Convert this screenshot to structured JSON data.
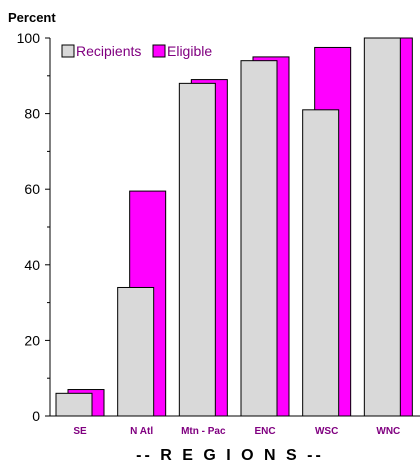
{
  "chart_data": {
    "type": "bar",
    "ylabel": "Percent",
    "xlabel": "-- R E G I O N S --",
    "ylim": [
      0,
      100
    ],
    "yticks": [
      0,
      20,
      40,
      60,
      80,
      100
    ],
    "categories": [
      "SE",
      "N Atl",
      "Mtn - Pac",
      "ENC",
      "WSC",
      "WNC"
    ],
    "series": [
      {
        "name": "Recipients",
        "color": "#d9d9d9",
        "values": [
          6,
          34,
          88,
          94,
          81,
          100
        ]
      },
      {
        "name": "Eligible",
        "color": "#ff00ff",
        "values": [
          7,
          59.5,
          89,
          95,
          97.5,
          100
        ]
      }
    ],
    "legend_position": "top-left",
    "grid": false
  }
}
